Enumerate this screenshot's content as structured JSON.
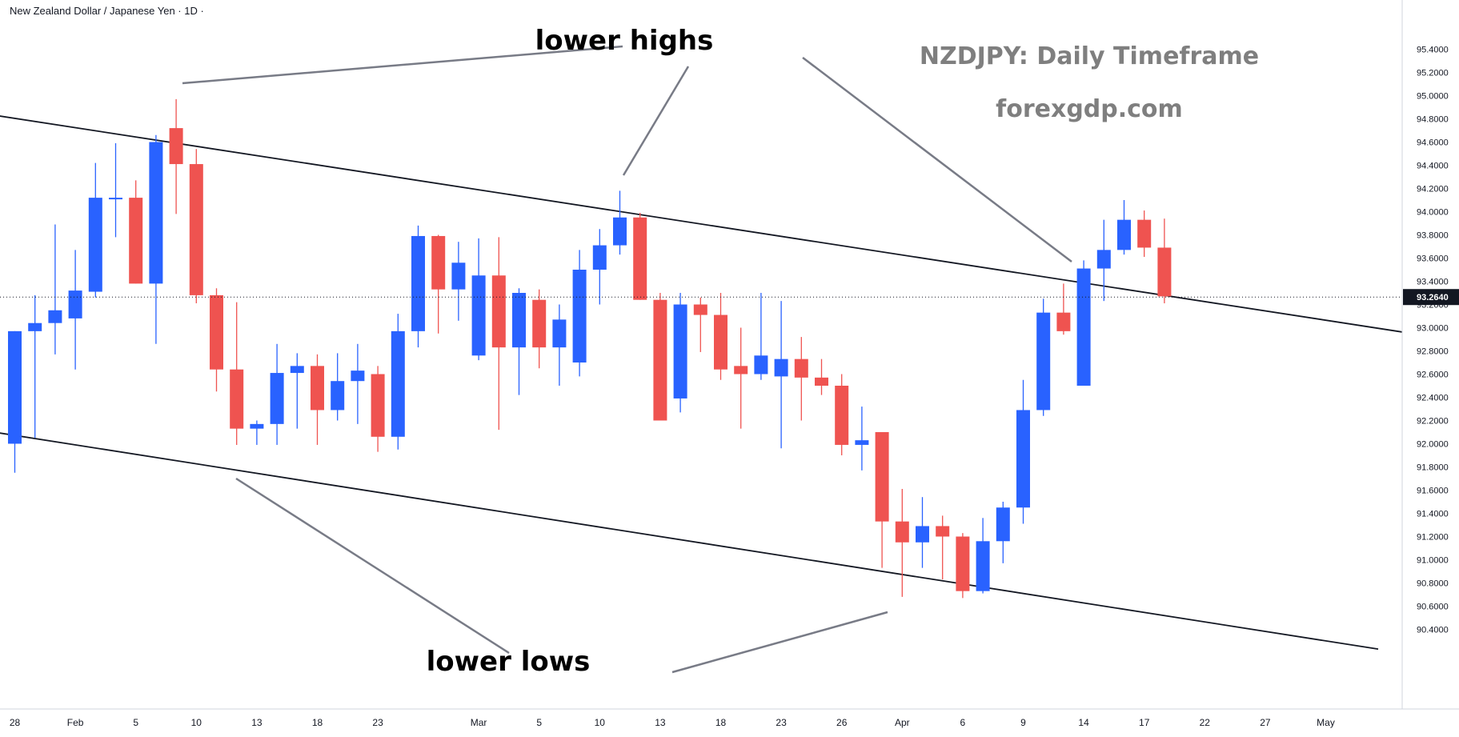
{
  "header": {
    "symbol_title": "New Zealand Dollar / Japanese Yen · 1D ·"
  },
  "annotations": {
    "chart_title": "NZDJPY: Daily Timeframe",
    "website": "forexgdp.com",
    "lower_highs": "lower highs",
    "lower_lows": "lower lows"
  },
  "colors": {
    "bull": "#2962ff",
    "bear": "#ef5350",
    "trendline": "#131722",
    "callout": "#787b86",
    "annotation_text": "#7f7f7f"
  },
  "chart_data": {
    "type": "candlestick",
    "title": "NZDJPY: Daily Timeframe",
    "symbol": "New Zealand Dollar / Japanese Yen",
    "timeframe": "1D",
    "ylim": [
      90.2,
      95.5
    ],
    "y_ticks": [
      "90.4000",
      "90.6000",
      "90.8000",
      "91.0000",
      "91.2000",
      "91.4000",
      "91.6000",
      "91.8000",
      "92.0000",
      "92.2000",
      "92.4000",
      "92.6000",
      "92.8000",
      "93.0000",
      "93.2000",
      "93.4000",
      "93.6000",
      "93.8000",
      "94.0000",
      "94.2000",
      "94.4000",
      "94.6000",
      "94.8000",
      "95.0000",
      "95.2000",
      "95.4000"
    ],
    "current_price": "93.2640",
    "x_ticks": [
      {
        "label": "28",
        "index": 0
      },
      {
        "label": "Feb",
        "index": 3
      },
      {
        "label": "5",
        "index": 6
      },
      {
        "label": "10",
        "index": 9
      },
      {
        "label": "13",
        "index": 12
      },
      {
        "label": "18",
        "index": 15
      },
      {
        "label": "23",
        "index": 18
      },
      {
        "label": "Mar",
        "index": 23
      },
      {
        "label": "5",
        "index": 26
      },
      {
        "label": "10",
        "index": 29
      },
      {
        "label": "13",
        "index": 32
      },
      {
        "label": "18",
        "index": 35
      },
      {
        "label": "23",
        "index": 38
      },
      {
        "label": "26",
        "index": 41
      },
      {
        "label": "Apr",
        "index": 44
      },
      {
        "label": "6",
        "index": 47
      },
      {
        "label": "9",
        "index": 50
      },
      {
        "label": "14",
        "index": 53
      },
      {
        "label": "17",
        "index": 56
      },
      {
        "label": "22",
        "index": 59
      },
      {
        "label": "27",
        "index": 62
      },
      {
        "label": "May",
        "index": 65
      }
    ],
    "candles": [
      {
        "o": 92.0,
        "h": 92.97,
        "l": 91.75,
        "c": 92.97
      },
      {
        "o": 92.97,
        "h": 93.28,
        "l": 92.05,
        "c": 93.04
      },
      {
        "o": 93.04,
        "h": 93.89,
        "l": 92.77,
        "c": 93.15
      },
      {
        "o": 93.08,
        "h": 93.67,
        "l": 92.64,
        "c": 93.32
      },
      {
        "o": 93.31,
        "h": 94.42,
        "l": 93.26,
        "c": 94.12
      },
      {
        "o": 94.12,
        "h": 94.59,
        "l": 93.78,
        "c": 94.12
      },
      {
        "o": 94.12,
        "h": 94.27,
        "l": 93.38,
        "c": 93.38
      },
      {
        "o": 93.38,
        "h": 94.66,
        "l": 92.86,
        "c": 94.6
      },
      {
        "o": 94.72,
        "h": 94.97,
        "l": 93.98,
        "c": 94.41
      },
      {
        "o": 94.41,
        "h": 94.54,
        "l": 93.21,
        "c": 93.28
      },
      {
        "o": 93.28,
        "h": 93.34,
        "l": 92.45,
        "c": 92.64
      },
      {
        "o": 92.64,
        "h": 93.22,
        "l": 91.99,
        "c": 92.13
      },
      {
        "o": 92.13,
        "h": 92.2,
        "l": 91.99,
        "c": 92.17
      },
      {
        "o": 92.17,
        "h": 92.86,
        "l": 91.99,
        "c": 92.61
      },
      {
        "o": 92.61,
        "h": 92.78,
        "l": 92.13,
        "c": 92.67
      },
      {
        "o": 92.67,
        "h": 92.77,
        "l": 91.99,
        "c": 92.29
      },
      {
        "o": 92.29,
        "h": 92.78,
        "l": 92.2,
        "c": 92.54
      },
      {
        "o": 92.54,
        "h": 92.86,
        "l": 92.17,
        "c": 92.63
      },
      {
        "o": 92.6,
        "h": 92.67,
        "l": 91.93,
        "c": 92.06
      },
      {
        "o": 92.06,
        "h": 93.12,
        "l": 91.95,
        "c": 92.97
      },
      {
        "o": 92.97,
        "h": 93.88,
        "l": 92.83,
        "c": 93.79
      },
      {
        "o": 93.79,
        "h": 93.8,
        "l": 92.95,
        "c": 93.33
      },
      {
        "o": 93.33,
        "h": 93.74,
        "l": 93.06,
        "c": 93.56
      },
      {
        "o": 92.76,
        "h": 93.77,
        "l": 92.72,
        "c": 93.45
      },
      {
        "o": 93.45,
        "h": 93.78,
        "l": 92.12,
        "c": 92.83
      },
      {
        "o": 92.83,
        "h": 93.34,
        "l": 92.42,
        "c": 93.3
      },
      {
        "o": 93.24,
        "h": 93.33,
        "l": 92.65,
        "c": 92.83
      },
      {
        "o": 92.83,
        "h": 93.2,
        "l": 92.5,
        "c": 93.07
      },
      {
        "o": 92.7,
        "h": 93.67,
        "l": 92.58,
        "c": 93.5
      },
      {
        "o": 93.5,
        "h": 93.85,
        "l": 93.2,
        "c": 93.71
      },
      {
        "o": 93.71,
        "h": 94.18,
        "l": 93.63,
        "c": 93.95
      },
      {
        "o": 93.95,
        "h": 93.99,
        "l": 93.24,
        "c": 93.24
      },
      {
        "o": 93.24,
        "h": 93.3,
        "l": 92.2,
        "c": 92.2
      },
      {
        "o": 92.39,
        "h": 93.3,
        "l": 92.27,
        "c": 93.2
      },
      {
        "o": 93.2,
        "h": 93.26,
        "l": 92.79,
        "c": 93.11
      },
      {
        "o": 93.11,
        "h": 93.3,
        "l": 92.55,
        "c": 92.64
      },
      {
        "o": 92.67,
        "h": 93.0,
        "l": 92.13,
        "c": 92.6
      },
      {
        "o": 92.6,
        "h": 93.3,
        "l": 92.55,
        "c": 92.76
      },
      {
        "o": 92.58,
        "h": 93.23,
        "l": 91.96,
        "c": 92.73
      },
      {
        "o": 92.73,
        "h": 92.92,
        "l": 92.2,
        "c": 92.57
      },
      {
        "o": 92.57,
        "h": 92.73,
        "l": 92.42,
        "c": 92.5
      },
      {
        "o": 92.5,
        "h": 92.6,
        "l": 91.9,
        "c": 91.99
      },
      {
        "o": 91.99,
        "h": 92.32,
        "l": 91.77,
        "c": 92.03
      },
      {
        "o": 92.1,
        "h": 92.1,
        "l": 90.93,
        "c": 91.33
      },
      {
        "o": 91.33,
        "h": 91.61,
        "l": 90.68,
        "c": 91.15
      },
      {
        "o": 91.15,
        "h": 91.54,
        "l": 90.93,
        "c": 91.29
      },
      {
        "o": 91.29,
        "h": 91.38,
        "l": 90.83,
        "c": 91.2
      },
      {
        "o": 91.2,
        "h": 91.23,
        "l": 90.67,
        "c": 90.73
      },
      {
        "o": 90.73,
        "h": 91.36,
        "l": 90.71,
        "c": 91.16
      },
      {
        "o": 91.16,
        "h": 91.5,
        "l": 90.97,
        "c": 91.45
      },
      {
        "o": 91.45,
        "h": 92.55,
        "l": 91.31,
        "c": 92.29
      },
      {
        "o": 92.29,
        "h": 93.25,
        "l": 92.24,
        "c": 93.13
      },
      {
        "o": 93.13,
        "h": 93.38,
        "l": 92.94,
        "c": 92.97
      },
      {
        "o": 92.5,
        "h": 93.58,
        "l": 92.5,
        "c": 93.51
      },
      {
        "o": 93.51,
        "h": 93.93,
        "l": 93.23,
        "c": 93.67
      },
      {
        "o": 93.67,
        "h": 94.1,
        "l": 93.63,
        "c": 93.93
      },
      {
        "o": 93.93,
        "h": 94.01,
        "l": 93.61,
        "c": 93.69
      },
      {
        "o": 93.69,
        "h": 93.94,
        "l": 93.21,
        "c": 93.27
      }
    ],
    "trendlines": [
      {
        "name": "upper",
        "points": [
          [
            -4.7,
            94.93
          ],
          [
            68.9,
            92.96
          ]
        ]
      },
      {
        "name": "lower",
        "points": [
          [
            -4.7,
            92.2
          ],
          [
            67.6,
            90.23
          ]
        ]
      }
    ]
  }
}
